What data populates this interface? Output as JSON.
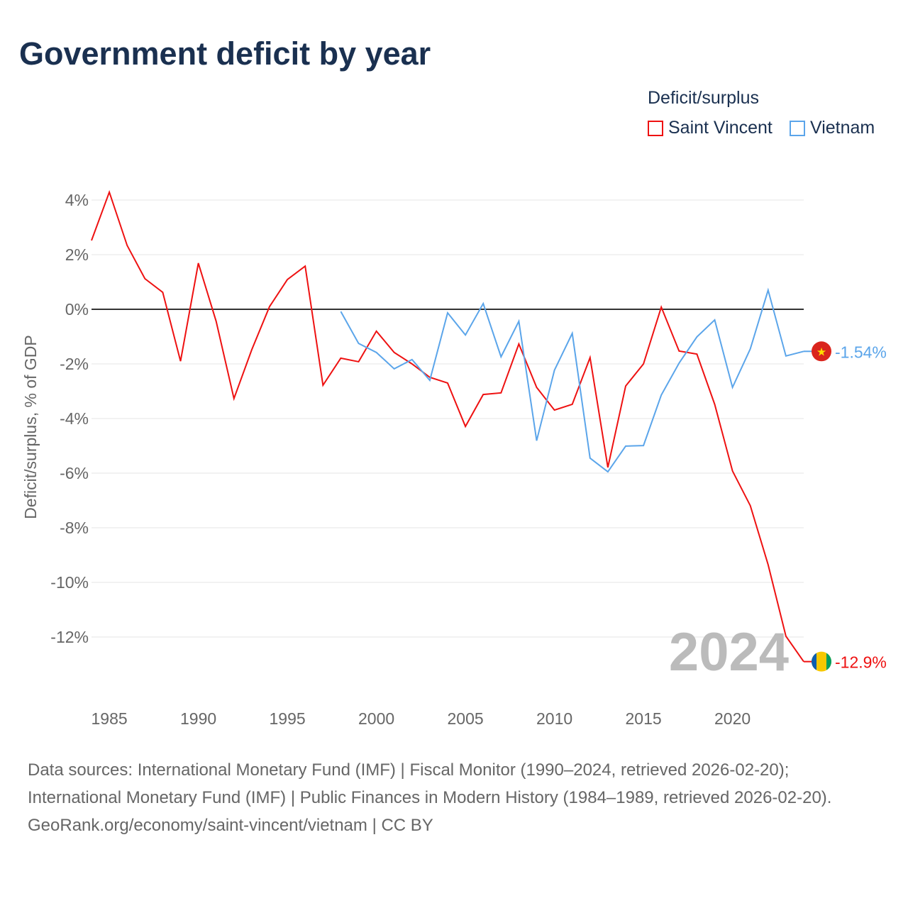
{
  "title": "Government deficit by year",
  "legend": {
    "title": "Deficit/surplus",
    "items": [
      {
        "label": "Saint Vincent",
        "color": "#ee1111"
      },
      {
        "label": "Vietnam",
        "color": "#5ba5ea"
      }
    ]
  },
  "year_label": "2024",
  "footer": {
    "line1": "Data sources: International Monetary Fund (IMF) | Fiscal Monitor (1990–2024, retrieved 2026-02-20); International Monetary Fund (IMF) | Public Finances in Modern History (1984–1989, retrieved 2026-02-20).",
    "line2": "GeoRank.org/economy/saint-vincent/vietnam | CC BY"
  },
  "chart_data": {
    "type": "line",
    "title": "Government deficit by year",
    "xlabel": "",
    "ylabel": "Deficit/surplus, % of GDP",
    "xlim": [
      1984,
      2024
    ],
    "ylim": [
      -13.5,
      4.5
    ],
    "xticks": [
      1985,
      1990,
      1995,
      2000,
      2005,
      2010,
      2015,
      2020
    ],
    "yticks": [
      4,
      2,
      0,
      -2,
      -4,
      -6,
      -8,
      -10,
      -12
    ],
    "ytick_labels": [
      "4%",
      "2%",
      "0%",
      "-2%",
      "-4%",
      "-6%",
      "-8%",
      "-10%",
      "-12%"
    ],
    "series": [
      {
        "name": "Saint Vincent",
        "color": "#ee1111",
        "end_label": "-12.9%",
        "start": 1984,
        "values": [
          2.52,
          4.29,
          2.34,
          1.12,
          0.62,
          -1.9,
          1.69,
          -0.44,
          -3.27,
          -1.48,
          0.1,
          1.09,
          1.58,
          -2.78,
          -1.79,
          -1.92,
          -0.8,
          -1.58,
          -2.0,
          -2.49,
          -2.7,
          -4.29,
          -3.12,
          -3.06,
          -1.27,
          -2.86,
          -3.69,
          -3.48,
          -1.77,
          -5.79,
          -2.81,
          -2.0,
          0.08,
          -1.53,
          -1.64,
          -3.48,
          -5.92,
          -7.19,
          -9.35,
          -11.97,
          -12.9
        ]
      },
      {
        "name": "Vietnam",
        "color": "#5ba5ea",
        "end_label": "-1.54%",
        "start": 1998,
        "values": [
          -0.08,
          -1.25,
          -1.58,
          -2.18,
          -1.84,
          -2.6,
          -0.13,
          -0.94,
          0.21,
          -1.74,
          -0.44,
          -4.81,
          -2.23,
          -0.88,
          -5.45,
          -5.95,
          -5.01,
          -4.99,
          -3.14,
          -1.97,
          -1.01,
          -0.39,
          -2.86,
          -1.45,
          0.7,
          -1.71,
          -1.54
        ]
      }
    ]
  }
}
